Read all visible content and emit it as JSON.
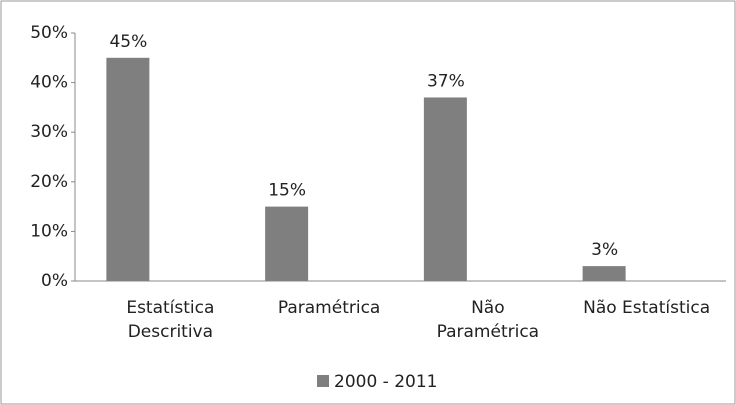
{
  "chart_data": {
    "type": "bar",
    "categories": [
      "Estatística\nDescritiva",
      "Paramétrica",
      "Não\nParamétrica",
      "Não Estatística"
    ],
    "series": [
      {
        "name": "2000 - 2011",
        "color": "#7f7f7f",
        "values": [
          45,
          15,
          37,
          3
        ],
        "value_labels": [
          "45%",
          "15%",
          "37%",
          "3%"
        ]
      }
    ],
    "ylim": [
      0,
      50
    ],
    "yticks": [
      {
        "value": 0,
        "label": "0%"
      },
      {
        "value": 10,
        "label": "10%"
      },
      {
        "value": 20,
        "label": "20%"
      },
      {
        "value": 30,
        "label": "30%"
      },
      {
        "value": 40,
        "label": "40%"
      },
      {
        "value": 50,
        "label": "50%"
      }
    ],
    "legend": "bottom"
  }
}
